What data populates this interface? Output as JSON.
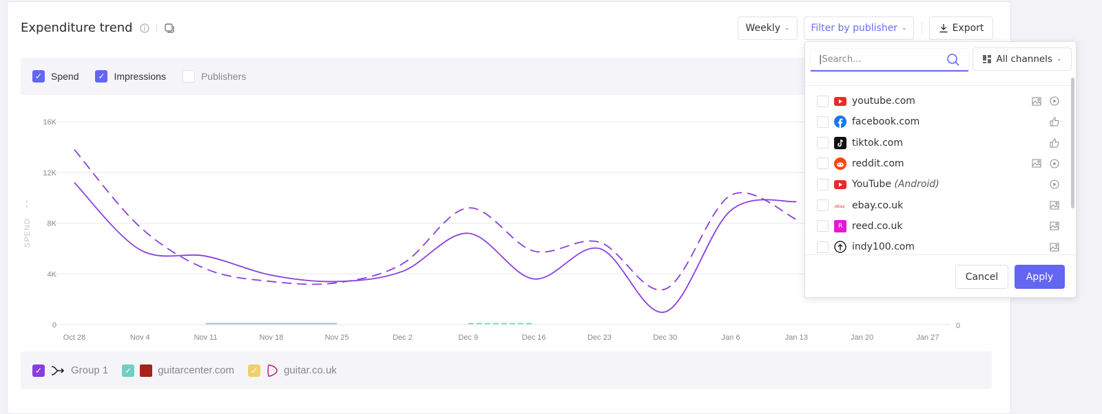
{
  "header": {
    "title": "Expenditure trend",
    "info_icon": "info-icon",
    "copy_icon": "copy-icon",
    "period_label": "Weekly",
    "filter_label": "Filter by publisher",
    "export_label": "Export"
  },
  "toggles": [
    {
      "label": "Spend",
      "checked": true
    },
    {
      "label": "Impressions",
      "checked": true
    },
    {
      "label": "Publishers",
      "checked": false
    }
  ],
  "colors": {
    "accent": "#6366f1",
    "group1": "#8a3ee0",
    "guitarcenter": "#6fcfc0",
    "guitar_co_uk": "#f0cf70"
  },
  "chart_data": {
    "type": "line",
    "ylabel": "SPEND",
    "x": [
      "Oct 28",
      "Nov 4",
      "Nov 11",
      "Nov 18",
      "Nov 25",
      "Dec 2",
      "Dec 9",
      "Dec 16",
      "Dec 23",
      "Dec 30",
      "Jan 6",
      "Jan 13",
      "Jan 20",
      "Jan 27"
    ],
    "y_ticks": [
      "0",
      "4K",
      "8K",
      "12K",
      "16K"
    ],
    "ylim": [
      0,
      16000
    ],
    "y2_ticks": [
      "0"
    ],
    "grid": true,
    "series": [
      {
        "name": "Group 1",
        "metric": "Spend",
        "style": "dashed",
        "color": "#8a3ee0",
        "values": [
          13800,
          7700,
          4400,
          3400,
          3300,
          4800,
          9200,
          5800,
          6500,
          2800,
          10200,
          8300,
          null,
          null
        ]
      },
      {
        "name": "Group 1",
        "metric": "Impressions",
        "style": "solid",
        "color": "#8a3ee0",
        "values": [
          11200,
          5900,
          5400,
          3900,
          3400,
          4200,
          7200,
          3600,
          6000,
          1000,
          9000,
          9700,
          null,
          null
        ]
      },
      {
        "name": "guitarcenter.com",
        "metric": "Impressions",
        "style": "solid",
        "color": "#6fcfc0",
        "values": [
          null,
          null,
          80,
          80,
          80,
          null,
          null,
          null,
          null,
          null,
          null,
          null,
          null,
          null
        ]
      },
      {
        "name": "guitarcenter.com",
        "metric": "Spend",
        "style": "dashed",
        "color": "#6fcfc0",
        "values": [
          null,
          null,
          null,
          null,
          null,
          null,
          80,
          80,
          null,
          null,
          null,
          null,
          null,
          null
        ]
      }
    ]
  },
  "legend": [
    {
      "label": "Group 1",
      "color": "#8a3ee0",
      "icon": "merge-arrow-icon"
    },
    {
      "label": "guitarcenter.com",
      "color": "#6fcfc0",
      "icon": "guitarcenter-logo-icon"
    },
    {
      "label": "guitar.co.uk",
      "color": "#f0cf70",
      "icon": "guitar-pick-icon"
    }
  ],
  "filter_popup": {
    "search_placeholder": "Search...",
    "channels_label": "All channels",
    "publishers": [
      {
        "name": "youtube.com",
        "suffix": "",
        "logo": "youtube",
        "channels": [
          "image-icon",
          "video-icon"
        ]
      },
      {
        "name": "facebook.com",
        "suffix": "",
        "logo": "facebook",
        "channels": [
          "social-like-icon"
        ]
      },
      {
        "name": "tiktok.com",
        "suffix": "",
        "logo": "tiktok",
        "channels": [
          "social-like-icon"
        ]
      },
      {
        "name": "reddit.com",
        "suffix": "",
        "logo": "reddit",
        "channels": [
          "image-icon",
          "video-icon"
        ]
      },
      {
        "name": "YouTube ",
        "suffix": "(Android)",
        "logo": "youtube",
        "channels": [
          "video-icon"
        ]
      },
      {
        "name": "ebay.co.uk",
        "suffix": "",
        "logo": "ebay",
        "channels": [
          "image-icon"
        ]
      },
      {
        "name": "reed.co.uk",
        "suffix": "",
        "logo": "reed",
        "channels": [
          "image-icon"
        ]
      },
      {
        "name": "indy100.com",
        "suffix": "",
        "logo": "indy100",
        "channels": [
          "image-icon"
        ]
      }
    ],
    "cancel_label": "Cancel",
    "apply_label": "Apply"
  }
}
